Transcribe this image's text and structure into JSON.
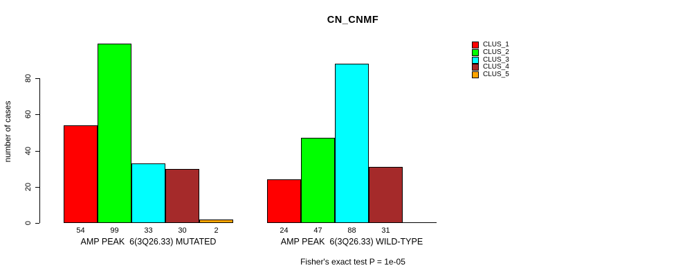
{
  "title": "CN_CNMF",
  "chart_data": {
    "type": "bar",
    "title": "CN_CNMF",
    "ylabel": "number of cases",
    "ylim": [
      0,
      80
    ],
    "yticks": [
      0,
      20,
      40,
      60,
      80
    ],
    "grid": false,
    "legend_position": "right",
    "series": [
      {
        "name": "CLUS_1",
        "color": "#ff0000"
      },
      {
        "name": "CLUS_2",
        "color": "#00ff00"
      },
      {
        "name": "CLUS_3",
        "color": "#00ffff"
      },
      {
        "name": "CLUS_4",
        "color": "#a52a2a"
      },
      {
        "name": "CLUS_5",
        "color": "#ffa500"
      }
    ],
    "groups": [
      {
        "label": "AMP PEAK  6(3Q26.33) MUTATED",
        "values": [
          54,
          99,
          33,
          30,
          2
        ],
        "value_labels": [
          "54",
          "99",
          "33",
          "30",
          "2"
        ]
      },
      {
        "label": "AMP PEAK  6(3Q26.33) WILD-TYPE",
        "values": [
          24,
          47,
          88,
          31,
          0
        ],
        "value_labels": [
          "24",
          "47",
          "88",
          "31",
          ""
        ]
      }
    ],
    "footnote": "Fisher's exact test P = 1e-05"
  }
}
